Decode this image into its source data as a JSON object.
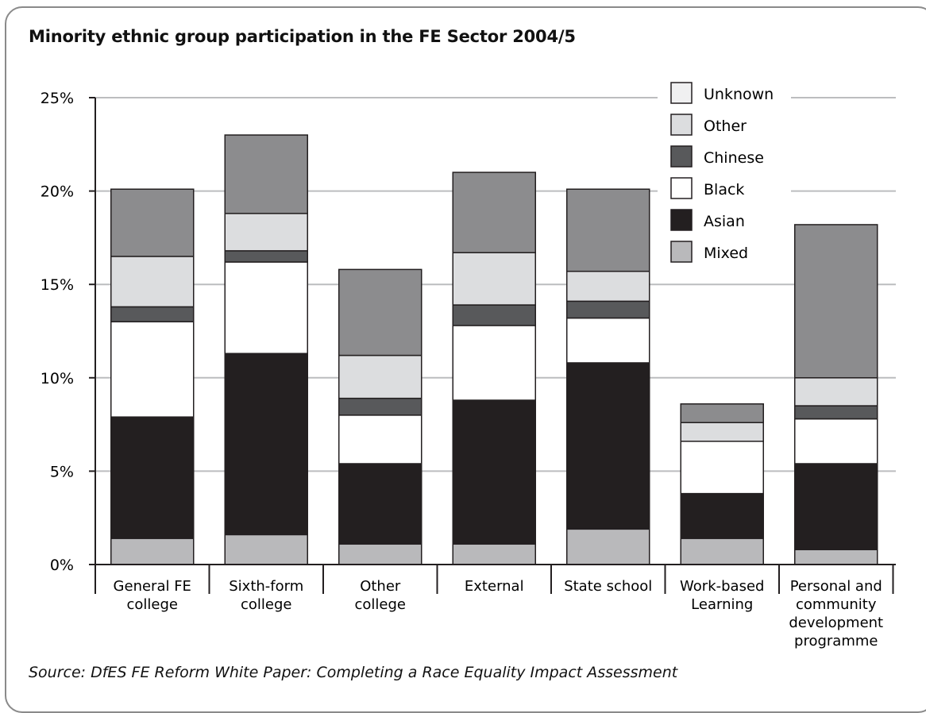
{
  "chart_data": {
    "type": "bar",
    "stacked": true,
    "title": "Minority ethnic group participation in the FE Sector 2004/5",
    "source": "Source: DfES FE Reform White Paper: Completing a Race Equality Impact Assessment",
    "xlabel": "",
    "ylabel": "",
    "ylim": [
      0,
      25
    ],
    "yticks": [
      "0%",
      "5%",
      "10%",
      "15%",
      "20%",
      "25%"
    ],
    "grid": true,
    "legend_position": "top-right",
    "categories": [
      [
        "General FE",
        "college"
      ],
      [
        "Sixth-form",
        "college"
      ],
      [
        "Other",
        "college"
      ],
      [
        "External"
      ],
      [
        "State school"
      ],
      [
        "Work-based",
        "Learning"
      ],
      [
        "Personal and",
        "community",
        "development",
        "programme"
      ]
    ],
    "series": [
      {
        "name": "Mixed",
        "color": "#b9b9bb",
        "values": [
          1.4,
          1.6,
          1.1,
          1.1,
          1.9,
          1.4,
          0.8
        ]
      },
      {
        "name": "Asian",
        "color": "#231f20",
        "values": [
          6.5,
          9.7,
          4.3,
          7.7,
          8.9,
          2.4,
          4.6
        ]
      },
      {
        "name": "Black",
        "color": "#ffffff",
        "values": [
          5.1,
          4.9,
          2.6,
          4.0,
          2.4,
          2.8,
          2.4
        ]
      },
      {
        "name": "Chinese",
        "color": "#58595b",
        "values": [
          0.8,
          0.6,
          0.9,
          1.1,
          0.9,
          0.0,
          0.7
        ]
      },
      {
        "name": "Other",
        "color": "#dcdddf",
        "values": [
          2.7,
          2.0,
          2.3,
          2.8,
          1.6,
          1.0,
          1.5
        ]
      },
      {
        "name": "Unknown",
        "color": "#8c8c8e",
        "values": [
          3.6,
          4.2,
          4.6,
          4.3,
          4.4,
          1.0,
          8.2
        ]
      }
    ],
    "legend_order": [
      "Unknown",
      "Other",
      "Chinese",
      "Black",
      "Asian",
      "Mixed"
    ],
    "legend_swatch_colors": {
      "Unknown": "#f0f0f1",
      "Other": "#dcdddf",
      "Chinese": "#58595b",
      "Black": "#ffffff",
      "Asian": "#231f20",
      "Mixed": "#b9b9bb"
    },
    "gridline_color": "#bcbdbf"
  }
}
